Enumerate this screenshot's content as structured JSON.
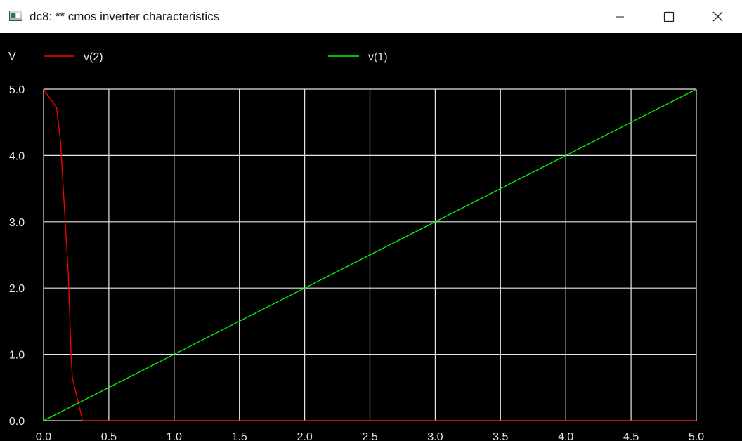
{
  "window": {
    "title": "dc8: ** cmos inverter characteristics",
    "icon": "plot-window-icon",
    "controls": {
      "minimize_icon": "minimize-icon",
      "maximize_icon": "maximize-icon",
      "close_icon": "close-icon"
    }
  },
  "colors": {
    "background": "#000000",
    "grid": "#e6e6e6",
    "text": "#e6e6e6",
    "series_v2": "#ff0000",
    "series_v1": "#00ff00"
  },
  "chart_data": {
    "type": "line",
    "title": "",
    "xlabel": "",
    "ylabel": "V",
    "xlim": [
      0,
      5
    ],
    "ylim": [
      0,
      5
    ],
    "xticks": [
      "0.0",
      "0.5",
      "1.0",
      "1.5",
      "2.0",
      "2.5",
      "3.0",
      "3.5",
      "4.0",
      "4.5",
      "5.0"
    ],
    "yticks": [
      "0.0",
      "1.0",
      "2.0",
      "3.0",
      "4.0",
      "5.0"
    ],
    "grid": true,
    "legend_placement": "top",
    "series": [
      {
        "name": "v(2)",
        "color": "#ff0000",
        "x": [
          0.0,
          0.1,
          0.13,
          0.16,
          0.19,
          0.2,
          0.21,
          0.22,
          0.25,
          0.3,
          0.35,
          5.0
        ],
        "y": [
          5.0,
          4.72,
          4.2,
          3.2,
          2.2,
          1.6,
          1.05,
          0.65,
          0.4,
          0.0,
          0.0,
          0.0
        ]
      },
      {
        "name": "v(1)",
        "color": "#00ff00",
        "x": [
          0.0,
          5.0
        ],
        "y": [
          0.0,
          5.0
        ]
      }
    ]
  }
}
